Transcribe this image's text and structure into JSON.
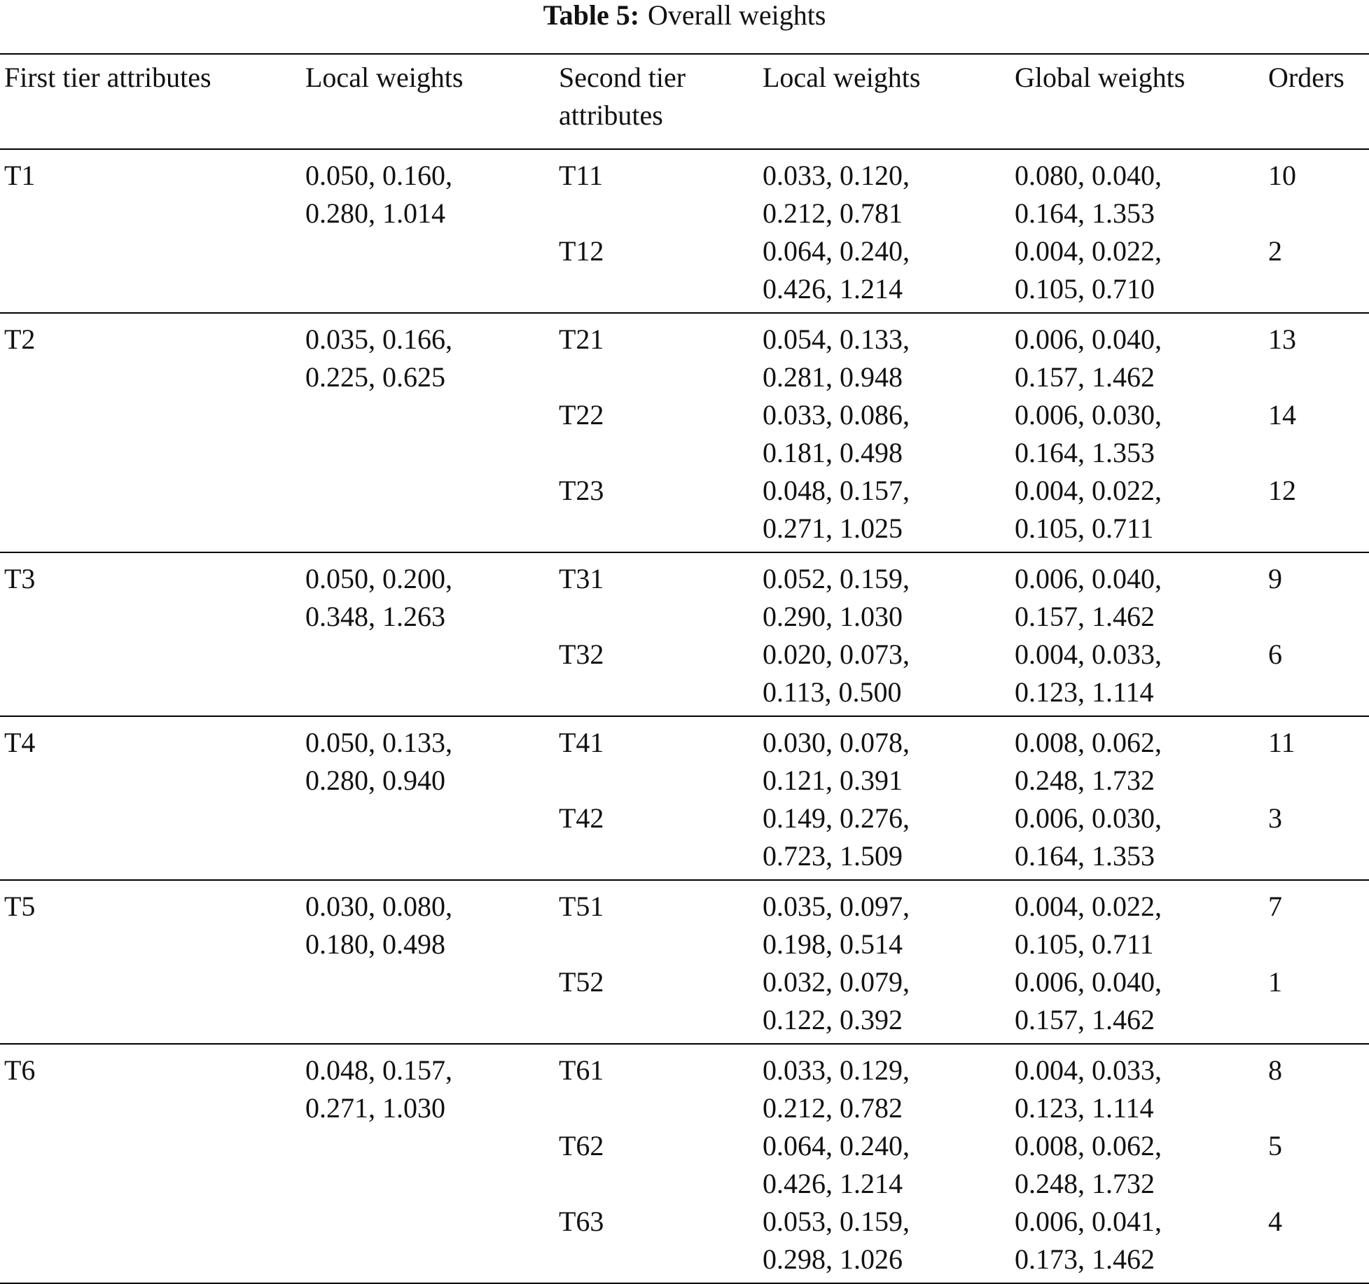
{
  "header": {
    "label": "Table 5:",
    "title": "Overall weights"
  },
  "table": {
    "columns": [
      "First tier attributes",
      "Local weights",
      "Second tier attributes",
      "Local weights",
      "Global weights",
      "Orders"
    ],
    "groups": [
      {
        "first_tier": "T1",
        "local_weights": "0.050, 0.160, 0.280, 1.014",
        "rows": [
          {
            "second_tier": "T11",
            "local_weights": "0.033, 0.120, 0.212, 0.781",
            "global_weights": "0.080, 0.040, 0.164, 1.353",
            "order": 10
          },
          {
            "second_tier": "T12",
            "local_weights": "0.064, 0.240, 0.426, 1.214",
            "global_weights": "0.004, 0.022, 0.105, 0.710",
            "order": 2
          }
        ]
      },
      {
        "first_tier": "T2",
        "local_weights": "0.035, 0.166, 0.225, 0.625",
        "rows": [
          {
            "second_tier": "T21",
            "local_weights": "0.054, 0.133, 0.281, 0.948",
            "global_weights": "0.006, 0.040, 0.157, 1.462",
            "order": 13
          },
          {
            "second_tier": "T22",
            "local_weights": "0.033, 0.086, 0.181, 0.498",
            "global_weights": "0.006, 0.030, 0.164, 1.353",
            "order": 14
          },
          {
            "second_tier": "T23",
            "local_weights": "0.048, 0.157, 0.271, 1.025",
            "global_weights": "0.004, 0.022, 0.105, 0.711",
            "order": 12
          }
        ]
      },
      {
        "first_tier": "T3",
        "local_weights": "0.050, 0.200, 0.348, 1.263",
        "rows": [
          {
            "second_tier": "T31",
            "local_weights": "0.052, 0.159, 0.290, 1.030",
            "global_weights": "0.006, 0.040, 0.157, 1.462",
            "order": 9
          },
          {
            "second_tier": "T32",
            "local_weights": "0.020, 0.073, 0.113, 0.500",
            "global_weights": "0.004, 0.033, 0.123, 1.114",
            "order": 6
          }
        ]
      },
      {
        "first_tier": "T4",
        "local_weights": "0.050, 0.133, 0.280, 0.940",
        "rows": [
          {
            "second_tier": "T41",
            "local_weights": "0.030, 0.078, 0.121, 0.391",
            "global_weights": "0.008, 0.062, 0.248, 1.732",
            "order": 11
          },
          {
            "second_tier": "T42",
            "local_weights": "0.149, 0.276, 0.723, 1.509",
            "global_weights": "0.006, 0.030, 0.164, 1.353",
            "order": 3
          }
        ]
      },
      {
        "first_tier": "T5",
        "local_weights": "0.030, 0.080, 0.180, 0.498",
        "rows": [
          {
            "second_tier": "T51",
            "local_weights": "0.035, 0.097, 0.198, 0.514",
            "global_weights": "0.004, 0.022, 0.105, 0.711",
            "order": 7
          },
          {
            "second_tier": "T52",
            "local_weights": "0.032, 0.079, 0.122, 0.392",
            "global_weights": "0.006, 0.040, 0.157, 1.462",
            "order": 1
          }
        ]
      },
      {
        "first_tier": "T6",
        "local_weights": "0.048, 0.157, 0.271, 1.030",
        "rows": [
          {
            "second_tier": "T61",
            "local_weights": "0.033, 0.129, 0.212, 0.782",
            "global_weights": "0.004, 0.033, 0.123, 1.114",
            "order": 8
          },
          {
            "second_tier": "T62",
            "local_weights": "0.064, 0.240, 0.426, 1.214",
            "global_weights": "0.008, 0.062, 0.248, 1.732",
            "order": 5
          },
          {
            "second_tier": "T63",
            "local_weights": "0.053, 0.159, 0.298, 1.026",
            "global_weights": "0.006, 0.041, 0.173, 1.462",
            "order": 4
          }
        ]
      }
    ]
  }
}
